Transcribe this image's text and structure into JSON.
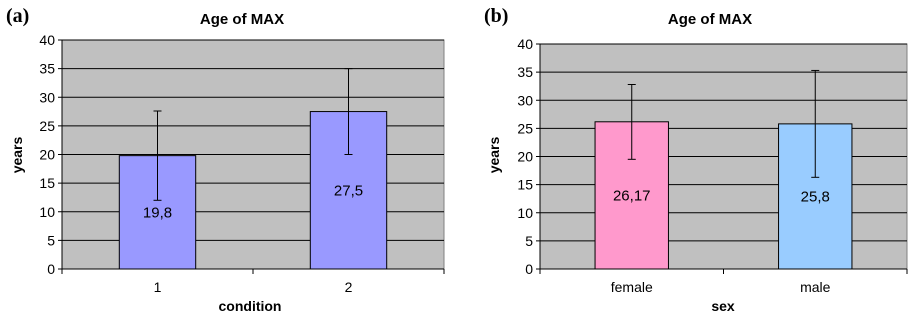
{
  "chart_data": [
    {
      "type": "bar",
      "panel_label": "(a)",
      "title": "Age of MAX",
      "xlabel": "condition",
      "ylabel": "years",
      "categories": [
        "1",
        "2"
      ],
      "values": [
        19.8,
        27.5
      ],
      "data_labels": [
        "19,8",
        "27,5"
      ],
      "error_low": [
        12.0,
        20.0
      ],
      "error_high": [
        27.6,
        35.0
      ],
      "bar_colors": [
        "#9999ff",
        "#9999ff"
      ],
      "ylim": [
        0,
        40
      ],
      "yticks": [
        "0",
        "5",
        "10",
        "15",
        "20",
        "25",
        "30",
        "35",
        "40"
      ],
      "grid": true,
      "plot_background": "#c0c0c0"
    },
    {
      "type": "bar",
      "panel_label": "(b)",
      "title": "Age of MAX",
      "xlabel": "sex",
      "ylabel": "years",
      "categories": [
        "female",
        "male"
      ],
      "values": [
        26.17,
        25.8
      ],
      "data_labels": [
        "26,17",
        "25,8"
      ],
      "error_low": [
        19.5,
        16.3
      ],
      "error_high": [
        32.8,
        35.3
      ],
      "bar_colors": [
        "#ff99cc",
        "#99ccff"
      ],
      "ylim": [
        0,
        40
      ],
      "yticks": [
        "0",
        "5",
        "10",
        "15",
        "20",
        "25",
        "30",
        "35",
        "40"
      ],
      "grid": true,
      "plot_background": "#c0c0c0"
    }
  ]
}
